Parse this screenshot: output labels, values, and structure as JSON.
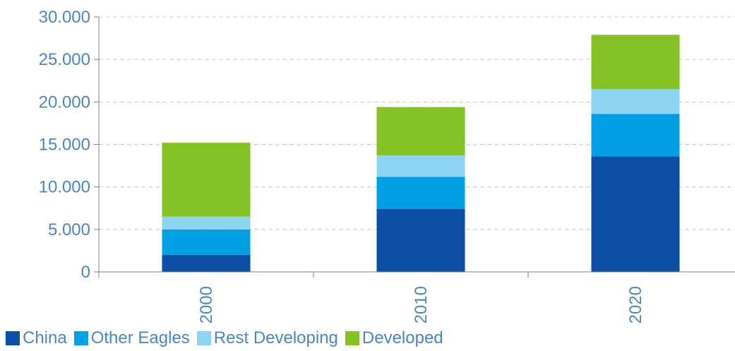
{
  "chart_data": {
    "type": "bar",
    "stacked": true,
    "categories": [
      "2000",
      "2010",
      "2020"
    ],
    "series": [
      {
        "name": "China",
        "color": "#0a4fa3",
        "values": [
          2000,
          7400,
          13600
        ]
      },
      {
        "name": "Other Eagles",
        "color": "#009fe3",
        "values": [
          3000,
          3800,
          5000
        ]
      },
      {
        "name": "Rest Developing",
        "color": "#8dd4f2",
        "values": [
          1500,
          2500,
          2900
        ]
      },
      {
        "name": "Developed",
        "color": "#84c225",
        "values": [
          8700,
          5700,
          6400
        ]
      }
    ],
    "ylim": [
      0,
      30000
    ],
    "yticks": [
      0,
      5000,
      10000,
      15000,
      20000,
      25000,
      30000
    ],
    "ytick_labels": [
      "0",
      "5.000",
      "10.000",
      "15.000",
      "20.000",
      "25.000",
      "30.000"
    ],
    "grid": true,
    "legend_position": "bottom-left",
    "title": "",
    "xlabel": "",
    "ylabel": "",
    "label_color": "#4a86c5",
    "grid_color": "#c8c8c8",
    "axis_color": "#7f7f7f"
  }
}
